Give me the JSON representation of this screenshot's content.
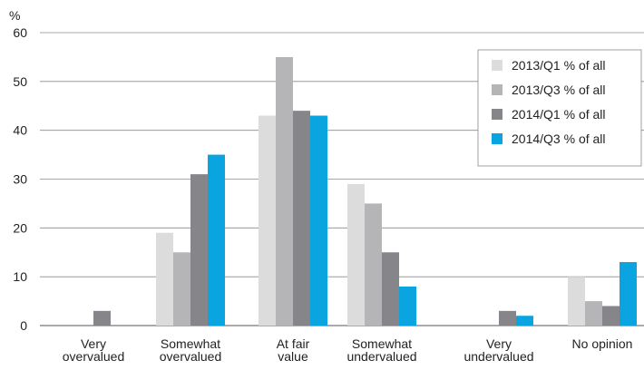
{
  "chart_data": {
    "type": "bar",
    "ylabel": "%",
    "ylim": [
      0,
      60
    ],
    "yticks": [
      0,
      10,
      20,
      30,
      40,
      50,
      60
    ],
    "categories": [
      [
        "Very",
        "overvalued"
      ],
      [
        "Somewhat",
        "overvalued"
      ],
      [
        "At fair",
        "value"
      ],
      [
        "Somewhat",
        "undervalued"
      ],
      [
        "Very",
        "undervalued"
      ],
      [
        "No opinion"
      ]
    ],
    "series": [
      {
        "name": "2013/Q1 % of all",
        "color": "#dcdcdc",
        "values": [
          0,
          19,
          43,
          29,
          0,
          10
        ]
      },
      {
        "name": "2013/Q3 % of all",
        "color": "#b5b5b8",
        "values": [
          0,
          15,
          55,
          25,
          0,
          5
        ]
      },
      {
        "name": "2014/Q1 % of all",
        "color": "#86868a",
        "values": [
          3,
          31,
          44,
          15,
          3,
          4
        ]
      },
      {
        "name": "2014/Q3 % of all",
        "color": "#0aa5e0",
        "values": [
          0,
          35,
          43,
          8,
          2,
          13
        ]
      }
    ],
    "grid": true,
    "legend_position": "top-right"
  }
}
